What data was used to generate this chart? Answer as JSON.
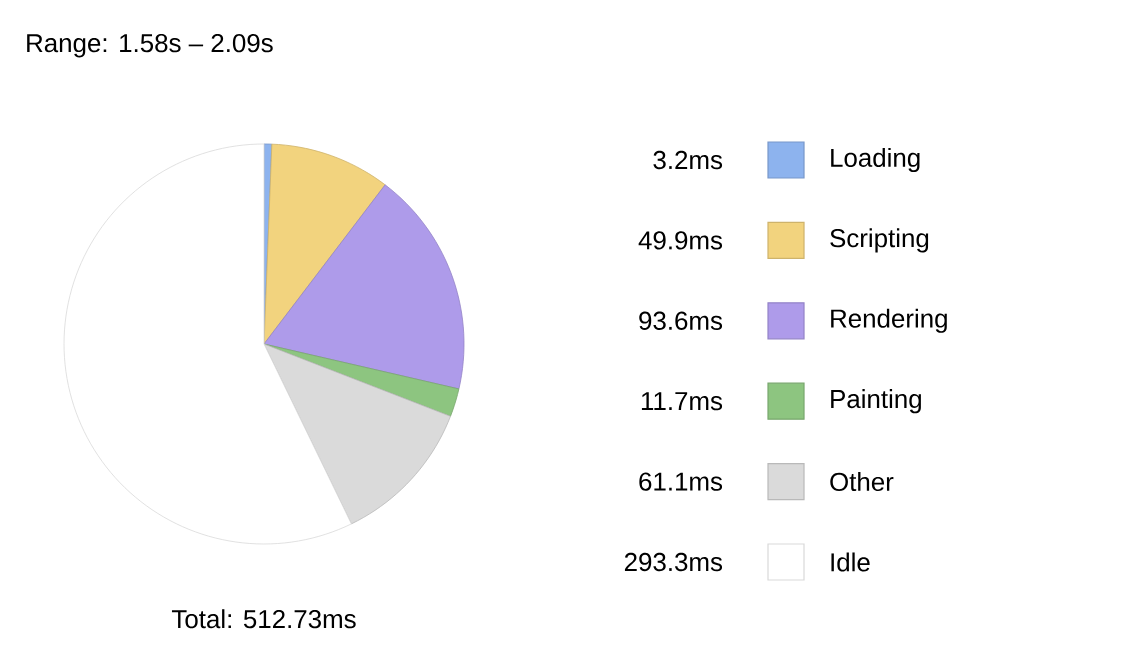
{
  "chart_data": {
    "type": "pie",
    "title": "Range: 1.58s – 2.09s",
    "categories": [
      "Loading",
      "Scripting",
      "Rendering",
      "Painting",
      "Other",
      "Idle"
    ],
    "values": [
      3.2,
      49.9,
      93.6,
      11.7,
      61.1,
      293.3
    ],
    "value_labels": [
      "3.2ms",
      "49.9ms",
      "93.6ms",
      "11.7ms",
      "61.1ms",
      "293.3ms"
    ],
    "colors": [
      "#8db3ee",
      "#f2d37e",
      "#ae9bea",
      "#8dc580",
      "#dadada",
      "#ffffff"
    ],
    "legend": "right",
    "annotations": [
      "Total: 512.73ms"
    ]
  }
}
